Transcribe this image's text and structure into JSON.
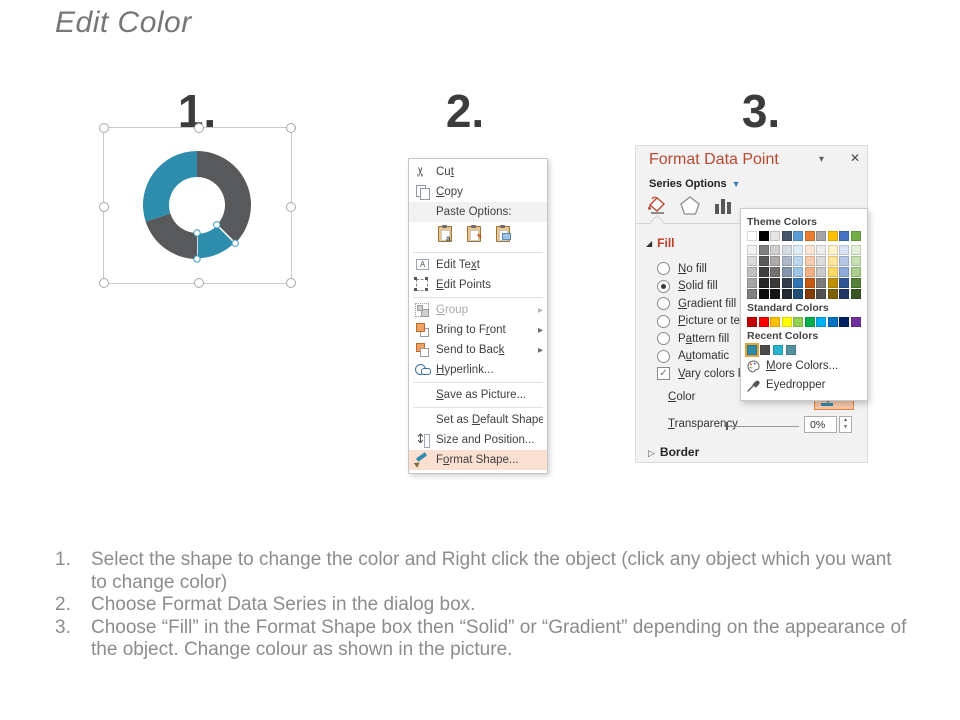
{
  "title": "Edit Color",
  "steps": [
    {
      "label": "1."
    },
    {
      "label": "2."
    },
    {
      "label": "3."
    }
  ],
  "colors": {
    "donut_teal": "#2E8CAD",
    "donut_gray": "#58595B",
    "menu_highlight": "#FBE0D2",
    "accent_orange": "#ED7D31",
    "panel_bg": "#F2F2F2",
    "panel_title_red": "#B84A32",
    "fill_header_red": "#BE3B24"
  },
  "donut": {
    "outer_r": 54,
    "inner_r": 28,
    "segments": [
      {
        "name": "segment-gray-top-right",
        "color": "#58595B",
        "from": 0,
        "to": 135,
        "selected": false
      },
      {
        "name": "segment-teal-selected",
        "color": "#2E8CAD",
        "from": 135,
        "to": 180,
        "selected": true
      },
      {
        "name": "segment-gray-bottom-left",
        "color": "#58595B",
        "from": 180,
        "to": 252,
        "selected": false
      },
      {
        "name": "segment-teal-left",
        "color": "#2E8CAD",
        "from": 252,
        "to": 360,
        "selected": false
      }
    ]
  },
  "context_menu": {
    "submenu_arrow": "▸",
    "items": [
      {
        "name": "cut",
        "icon": "ic-cut",
        "icon_name": "scissors-icon",
        "pre": "Cu",
        "accel": "t",
        "post": "",
        "separator_after": false
      },
      {
        "name": "copy",
        "icon": "ic-copy",
        "icon_name": "copy-icon",
        "pre": "",
        "accel": "C",
        "post": "opy",
        "separator_after": false
      },
      {
        "name": "paste-options",
        "icon": "ic-paste",
        "icon_name": "paste-icon",
        "pre": "Paste Options:",
        "accel": "",
        "post": "",
        "shaded": true,
        "separator_after": false
      },
      {
        "type": "paste_buttons",
        "buttons": [
          {
            "name": "paste-option-keep-text",
            "icon_name": "paste-keep-text-icon",
            "mark": "a"
          },
          {
            "name": "paste-option-keep-formatting",
            "icon_name": "paste-keep-formatting-icon",
            "mark": "brush"
          },
          {
            "name": "paste-option-picture",
            "icon_name": "paste-picture-icon",
            "mark": "pic"
          }
        ],
        "separator_after": true
      },
      {
        "name": "edit-text",
        "icon": "ic-edit-text",
        "icon_name": "edit-text-icon",
        "pre": "Edit Te",
        "accel": "x",
        "post": "t",
        "separator_after": false
      },
      {
        "name": "edit-points",
        "icon": "ic-edit-points",
        "icon_name": "edit-points-icon",
        "pre": "",
        "accel": "E",
        "post": "dit Points",
        "separator_after": true
      },
      {
        "name": "group",
        "icon": "ic-group",
        "icon_name": "group-icon",
        "pre": "",
        "accel": "G",
        "post": "roup",
        "disabled": true,
        "submenu": true,
        "separator_after": false
      },
      {
        "name": "bring-to-front",
        "icon": "ic-front",
        "icon_name": "bring-to-front-icon",
        "pre": "Bring to F",
        "accel": "r",
        "post": "ont",
        "submenu": true,
        "separator_after": false
      },
      {
        "name": "send-to-back",
        "icon": "ic-back",
        "icon_name": "send-to-back-icon",
        "pre": "Send to Bac",
        "accel": "k",
        "post": "",
        "submenu": true,
        "separator_after": false
      },
      {
        "name": "hyperlink",
        "icon": "ic-link",
        "icon_name": "hyperlink-icon",
        "pre": "",
        "accel": "H",
        "post": "yperlink...",
        "separator_after": true
      },
      {
        "name": "save-as-picture",
        "icon": "",
        "icon_name": "",
        "pre": "",
        "accel": "S",
        "post": "ave as Picture...",
        "separator_after": true
      },
      {
        "name": "set-as-default-shape",
        "icon": "",
        "icon_name": "",
        "pre": "Set as ",
        "accel": "D",
        "post": "efault Shape",
        "separator_after": false
      },
      {
        "name": "size-and-position",
        "icon": "ic-size",
        "icon_name": "size-position-icon",
        "pre": "Size and Position...",
        "accel": "",
        "post": "",
        "separator_after": false
      },
      {
        "name": "format-shape",
        "icon": "ic-fmtshape",
        "icon_name": "format-shape-icon",
        "pre": "F",
        "accel": "o",
        "post": "rmat Shape...",
        "highlight": true,
        "separator_after": false
      }
    ]
  },
  "format_panel": {
    "title": "Format Data Point",
    "series_options": "Series Options",
    "fill_section": "Fill",
    "border_section": "Border",
    "fill_options": [
      {
        "name": "no-fill",
        "pre": "",
        "accel": "N",
        "post": "o fill",
        "selected": false
      },
      {
        "name": "solid-fill",
        "pre": "",
        "accel": "S",
        "post": "olid fill",
        "selected": true
      },
      {
        "name": "gradient-fill",
        "pre": "",
        "accel": "G",
        "post": "radient fill",
        "selected": false
      },
      {
        "name": "picture-or-texture-fill",
        "pre": "",
        "accel": "P",
        "post": "icture or texture fill",
        "selected": false
      },
      {
        "name": "pattern-fill",
        "pre": "P",
        "accel": "a",
        "post": "ttern fill",
        "selected": false
      },
      {
        "name": "automatic",
        "pre": "A",
        "accel": "u",
        "post": "tomatic",
        "selected": false
      }
    ],
    "vary_checkbox": {
      "pre": "",
      "accel": "V",
      "post": "ary colors by slice",
      "checked": true,
      "check_glyph": "✓"
    },
    "color_label": {
      "pre": "",
      "accel": "C",
      "post": "olor"
    },
    "transparency_label": {
      "pre": "",
      "accel": "T",
      "post": "ransparency"
    },
    "transparency_value": "0%"
  },
  "color_picker": {
    "theme_label": "Theme Colors",
    "standard_label": "Standard Colors",
    "recent_label": "Recent Colors",
    "more_colors": {
      "pre": "",
      "accel": "M",
      "post": "ore Colors..."
    },
    "eyedropper": "Eyedropper",
    "theme_colors": [
      "#FFFFFF",
      "#000000",
      "#E7E6E6",
      "#44546A",
      "#5B9BD5",
      "#ED7D31",
      "#A5A5A5",
      "#FFC000",
      "#4472C4",
      "#70AD47"
    ],
    "theme_variants": [
      [
        "#F2F2F2",
        "#D9D9D9",
        "#BFBFBF",
        "#A6A6A6",
        "#808080"
      ],
      [
        "#808080",
        "#595959",
        "#404040",
        "#262626",
        "#0D0D0D"
      ],
      [
        "#D0CECE",
        "#AEAAAA",
        "#757171",
        "#3A3838",
        "#171616"
      ],
      [
        "#D6DCE4",
        "#ACB9CA",
        "#8496B0",
        "#333F4F",
        "#222A35"
      ],
      [
        "#DEEBF6",
        "#BDD7EE",
        "#9DC3E6",
        "#2E75B6",
        "#1F4E79"
      ],
      [
        "#FBE5D5",
        "#F7CBAC",
        "#F4B183",
        "#C55A11",
        "#833C00"
      ],
      [
        "#EDEDED",
        "#DBDBDB",
        "#C9C9C9",
        "#7B7B7B",
        "#525252"
      ],
      [
        "#FFF2CC",
        "#FFE599",
        "#FFD965",
        "#BF9000",
        "#7F6000"
      ],
      [
        "#DAE3F3",
        "#B4C7E7",
        "#8EAADB",
        "#2F5496",
        "#1F3864"
      ],
      [
        "#E2EFD9",
        "#C5E0B3",
        "#A8D08D",
        "#538135",
        "#375623"
      ]
    ],
    "standard_colors": [
      "#C00000",
      "#FF0000",
      "#FFC000",
      "#FFFF00",
      "#92D050",
      "#00B050",
      "#00B0F0",
      "#0070C0",
      "#002060",
      "#7030A0"
    ],
    "recent_colors": [
      "#2E8BA6",
      "#4D4D4D",
      "#2BB3CE",
      "#53919F"
    ],
    "recent_selected_index": 0
  },
  "instructions": [
    {
      "num": "1.",
      "text": "Select the shape to change the color and Right click the object (click any object which you want to change color)"
    },
    {
      "num": "2.",
      "text": "Choose Format Data Series in the dialog box."
    },
    {
      "num": "3.",
      "text": "Choose “Fill” in the Format Shape box then “Solid” or “Gradient” depending on the appearance of the object. Change colour as shown in the picture."
    }
  ]
}
